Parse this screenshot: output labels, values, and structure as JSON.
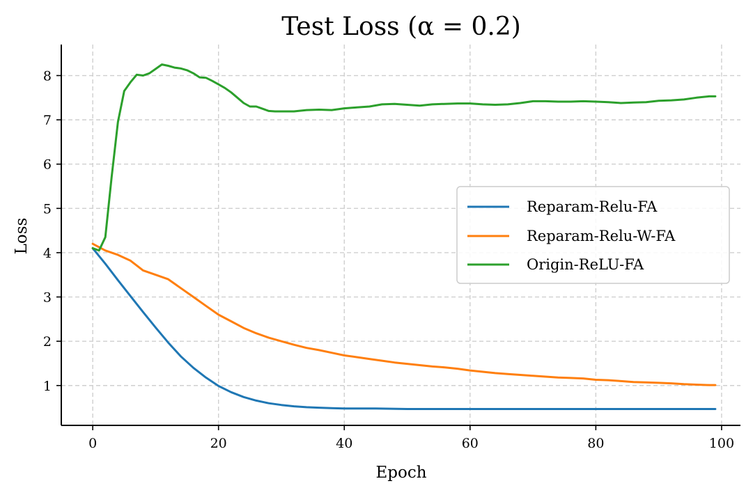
{
  "chart_data": {
    "type": "line",
    "title": "Test Loss (α = 0.2)",
    "xlabel": "Epoch",
    "ylabel": "Loss",
    "xlim": [
      -5,
      103
    ],
    "ylim": [
      0.1,
      8.7
    ],
    "xticks": [
      0,
      20,
      40,
      60,
      80,
      100
    ],
    "yticks": [
      1,
      2,
      3,
      4,
      5,
      6,
      7,
      8
    ],
    "grid": true,
    "legend_position": "center-right",
    "series": [
      {
        "name": "Reparam-Relu-FA",
        "color": "#1f77b4",
        "x": [
          0,
          2,
          4,
          6,
          8,
          10,
          12,
          14,
          16,
          18,
          20,
          22,
          24,
          26,
          28,
          30,
          32,
          34,
          36,
          38,
          40,
          45,
          50,
          60,
          70,
          80,
          90,
          99
        ],
        "y": [
          4.1,
          3.75,
          3.38,
          3.02,
          2.66,
          2.31,
          1.97,
          1.66,
          1.4,
          1.18,
          0.99,
          0.85,
          0.74,
          0.66,
          0.6,
          0.56,
          0.53,
          0.51,
          0.5,
          0.49,
          0.48,
          0.48,
          0.47,
          0.47,
          0.47,
          0.47,
          0.47,
          0.47
        ]
      },
      {
        "name": "Reparam-Relu-W-FA",
        "color": "#ff7f0e",
        "x": [
          0,
          2,
          4,
          6,
          8,
          10,
          12,
          14,
          16,
          18,
          20,
          22,
          24,
          26,
          28,
          30,
          32,
          34,
          36,
          38,
          40,
          42,
          44,
          46,
          48,
          50,
          52,
          54,
          56,
          58,
          60,
          62,
          64,
          66,
          68,
          70,
          72,
          74,
          76,
          78,
          80,
          82,
          84,
          86,
          88,
          90,
          92,
          94,
          96,
          98,
          99
        ],
        "y": [
          4.2,
          4.05,
          3.95,
          3.82,
          3.6,
          3.5,
          3.4,
          3.2,
          3.0,
          2.8,
          2.6,
          2.45,
          2.3,
          2.18,
          2.08,
          2.0,
          1.92,
          1.85,
          1.8,
          1.74,
          1.68,
          1.64,
          1.6,
          1.56,
          1.52,
          1.49,
          1.46,
          1.43,
          1.41,
          1.38,
          1.34,
          1.31,
          1.28,
          1.26,
          1.24,
          1.22,
          1.2,
          1.18,
          1.17,
          1.16,
          1.13,
          1.12,
          1.1,
          1.08,
          1.07,
          1.06,
          1.05,
          1.03,
          1.02,
          1.01,
          1.01
        ]
      },
      {
        "name": "Origin-ReLU-FA",
        "color": "#2ca02c",
        "x": [
          0,
          1,
          2,
          3,
          4,
          5,
          6,
          7,
          8,
          9,
          10,
          11,
          12,
          13,
          14,
          15,
          16,
          17,
          18,
          19,
          20,
          21,
          22,
          23,
          24,
          25,
          26,
          27,
          28,
          29,
          30,
          32,
          34,
          36,
          38,
          40,
          42,
          44,
          46,
          48,
          50,
          52,
          54,
          56,
          58,
          60,
          62,
          64,
          66,
          68,
          70,
          72,
          74,
          76,
          78,
          80,
          82,
          84,
          86,
          88,
          90,
          92,
          94,
          96,
          98,
          99
        ],
        "y": [
          4.1,
          4.05,
          4.35,
          5.7,
          6.95,
          7.65,
          7.85,
          8.02,
          8.0,
          8.05,
          8.15,
          8.25,
          8.22,
          8.18,
          8.16,
          8.12,
          8.05,
          7.96,
          7.95,
          7.88,
          7.8,
          7.72,
          7.62,
          7.5,
          7.38,
          7.3,
          7.3,
          7.25,
          7.2,
          7.19,
          7.19,
          7.19,
          7.22,
          7.23,
          7.22,
          7.26,
          7.28,
          7.3,
          7.35,
          7.36,
          7.34,
          7.32,
          7.35,
          7.36,
          7.37,
          7.37,
          7.35,
          7.34,
          7.35,
          7.38,
          7.42,
          7.42,
          7.41,
          7.41,
          7.42,
          7.41,
          7.4,
          7.38,
          7.39,
          7.4,
          7.43,
          7.44,
          7.46,
          7.5,
          7.53,
          7.53
        ]
      }
    ]
  }
}
